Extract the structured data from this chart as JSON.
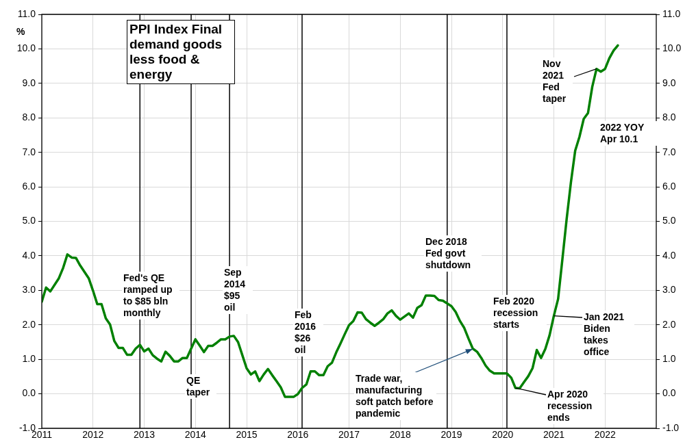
{
  "chart_data": {
    "type": "line",
    "title": "PPI Index Final demand goods less food & energy",
    "ylabel": "%",
    "x": [
      "2011-01",
      "2011-02",
      "2011-03",
      "2011-05",
      "2011-06",
      "2011-07",
      "2011-08",
      "2011-09",
      "2011-10",
      "2011-12",
      "2012-01",
      "2012-02",
      "2012-03",
      "2012-04",
      "2012-05",
      "2012-06",
      "2012-07",
      "2012-08",
      "2012-09",
      "2012-10",
      "2012-11",
      "2012-12",
      "2013-01",
      "2013-02",
      "2013-03",
      "2013-04",
      "2013-05",
      "2013-06",
      "2013-07",
      "2013-08",
      "2013-09",
      "2013-10",
      "2013-11",
      "2013-12",
      "2014-01",
      "2014-02",
      "2014-03",
      "2014-04",
      "2014-05",
      "2014-06",
      "2014-07",
      "2014-08",
      "2014-09",
      "2014-10",
      "2014-11",
      "2014-12",
      "2015-01",
      "2015-02",
      "2015-03",
      "2015-04",
      "2015-05",
      "2015-06",
      "2015-07",
      "2015-08",
      "2015-09",
      "2015-10",
      "2015-11",
      "2015-12",
      "2016-01",
      "2016-02",
      "2016-03",
      "2016-04",
      "2016-05",
      "2016-06",
      "2016-07",
      "2016-08",
      "2016-09",
      "2016-10",
      "2016-11",
      "2016-12",
      "2017-01",
      "2017-02",
      "2017-03",
      "2017-04",
      "2017-05",
      "2017-06",
      "2017-07",
      "2017-08",
      "2017-09",
      "2017-10",
      "2017-11",
      "2017-12",
      "2018-01",
      "2018-02",
      "2018-03",
      "2018-04",
      "2018-05",
      "2018-06",
      "2018-07",
      "2018-08",
      "2018-09",
      "2018-10",
      "2018-11",
      "2018-12",
      "2019-01",
      "2019-02",
      "2019-03",
      "2019-04",
      "2019-05",
      "2019-06",
      "2019-07",
      "2019-08",
      "2019-09",
      "2019-10",
      "2019-11",
      "2019-12",
      "2020-01",
      "2020-02",
      "2020-03",
      "2020-04",
      "2020-05",
      "2020-06",
      "2020-07",
      "2020-08",
      "2020-09",
      "2020-10",
      "2020-11",
      "2020-12",
      "2021-01",
      "2021-02",
      "2021-03",
      "2021-04",
      "2021-05",
      "2021-06",
      "2021-07",
      "2021-08",
      "2021-09",
      "2021-10",
      "2021-11",
      "2021-12",
      "2022-01",
      "2022-02",
      "2022-03",
      "2022-04"
    ],
    "series": [
      {
        "color": "#008000",
        "values": [
          2.67,
          3.08,
          2.97,
          3.35,
          3.65,
          4.04,
          3.95,
          3.94,
          3.72,
          3.35,
          2.99,
          2.6,
          2.6,
          2.19,
          2.01,
          1.53,
          1.33,
          1.33,
          1.13,
          1.13,
          1.31,
          1.42,
          1.23,
          1.31,
          1.12,
          1.02,
          0.94,
          1.22,
          1.1,
          0.94,
          0.94,
          1.04,
          1.04,
          1.31,
          1.58,
          1.4,
          1.21,
          1.39,
          1.39,
          1.48,
          1.58,
          1.58,
          1.66,
          1.68,
          1.5,
          1.12,
          0.74,
          0.56,
          0.65,
          0.37,
          0.56,
          0.72,
          0.54,
          0.37,
          0.19,
          -0.09,
          -0.09,
          -0.09,
          -0.01,
          0.17,
          0.27,
          0.65,
          0.65,
          0.54,
          0.54,
          0.8,
          0.9,
          1.2,
          1.46,
          1.73,
          1.99,
          2.11,
          2.36,
          2.35,
          2.16,
          2.06,
          1.97,
          2.06,
          2.16,
          2.33,
          2.42,
          2.26,
          2.15,
          2.24,
          2.33,
          2.21,
          2.49,
          2.57,
          2.85,
          2.85,
          2.84,
          2.72,
          2.7,
          2.62,
          2.54,
          2.37,
          2.11,
          1.91,
          1.6,
          1.31,
          1.22,
          1.04,
          0.82,
          0.67,
          0.59,
          0.59,
          0.59,
          0.59,
          0.47,
          0.17,
          0.16,
          0.34,
          0.51,
          0.74,
          1.27,
          1.04,
          1.3,
          1.7,
          2.26,
          2.75,
          3.9,
          5.07,
          6.13,
          7.05,
          7.45,
          7.97,
          8.14,
          8.9,
          9.42,
          9.34,
          9.42,
          9.73,
          9.95,
          10.1
        ]
      }
    ],
    "xlim": [
      "2011-01",
      "2023-01"
    ],
    "xticks": [
      "2011",
      "2012",
      "2013",
      "2014",
      "2015",
      "2016",
      "2017",
      "2018",
      "2019",
      "2020",
      "2021",
      "2022"
    ],
    "ylim": [
      -1,
      11
    ],
    "yticks": [
      {
        "value": -1,
        "label": "-1.0"
      },
      {
        "value": 0,
        "label": "0.0"
      },
      {
        "value": 1,
        "label": "1.0"
      },
      {
        "value": 2,
        "label": "2.0"
      },
      {
        "value": 3,
        "label": "3.0"
      },
      {
        "value": 4,
        "label": "4.0"
      },
      {
        "value": 5,
        "label": "5.0"
      },
      {
        "value": 6,
        "label": "6.0"
      },
      {
        "value": 7,
        "label": "7.0"
      },
      {
        "value": 8,
        "label": "8.0"
      },
      {
        "value": 9,
        "label": "9.0"
      },
      {
        "value": 10,
        "label": "10.0"
      },
      {
        "value": 11,
        "label": "11.0"
      }
    ],
    "y2lim": [
      -1,
      11
    ],
    "y2ticks": [
      {
        "value": -1,
        "label": "-1.0"
      },
      {
        "value": 0,
        "label": "0.0"
      },
      {
        "value": 1,
        "label": "1.0"
      },
      {
        "value": 2,
        "label": "2.0"
      },
      {
        "value": 3,
        "label": "3.0"
      },
      {
        "value": 4,
        "label": "4.0"
      },
      {
        "value": 5,
        "label": "5.0"
      },
      {
        "value": 6,
        "label": "6.0"
      },
      {
        "value": 7,
        "label": "7.0"
      },
      {
        "value": 8,
        "label": "8.0"
      },
      {
        "value": 9,
        "label": "9.0"
      },
      {
        "value": 10,
        "label": "10.0"
      },
      {
        "value": 11,
        "label": "11.0"
      }
    ],
    "grid": true,
    "ref_lines": [
      {
        "axis": "x",
        "value": "2012-12",
        "label": "Fed's QE ramped up to $85 bln monthly",
        "color": "#000000"
      },
      {
        "axis": "x",
        "value": "2013-12",
        "label": "QE taper",
        "color": "#000000"
      },
      {
        "axis": "x",
        "value": "2014-09",
        "label": "Sep 2014 $95 oil",
        "color": "#000000"
      },
      {
        "axis": "x",
        "value": "2016-02",
        "label": "Feb 2016 $26 oil",
        "color": "#000000"
      },
      {
        "axis": "x",
        "value": "2018-12",
        "label": "Dec 2018 Fed govt shutdown",
        "color": "#000000"
      },
      {
        "axis": "x",
        "value": "2020-02",
        "label": "Feb 2020 recession starts",
        "color": "#000000"
      }
    ],
    "annotations": [
      {
        "text": "Trade war, manufacturing soft patch before pandemic",
        "x": "2019-06",
        "y": 1.3
      },
      {
        "text": "Apr 2020 recession ends",
        "x": "2020-04",
        "y": 0.17
      },
      {
        "text": "Jan 2021 Biden takes office",
        "x": "2021-01",
        "y": 2.26
      },
      {
        "text": "Nov 2021 Fed taper",
        "x": "2021-11",
        "y": 9.42
      },
      "2022 YOY Apr 10.1"
    ]
  }
}
